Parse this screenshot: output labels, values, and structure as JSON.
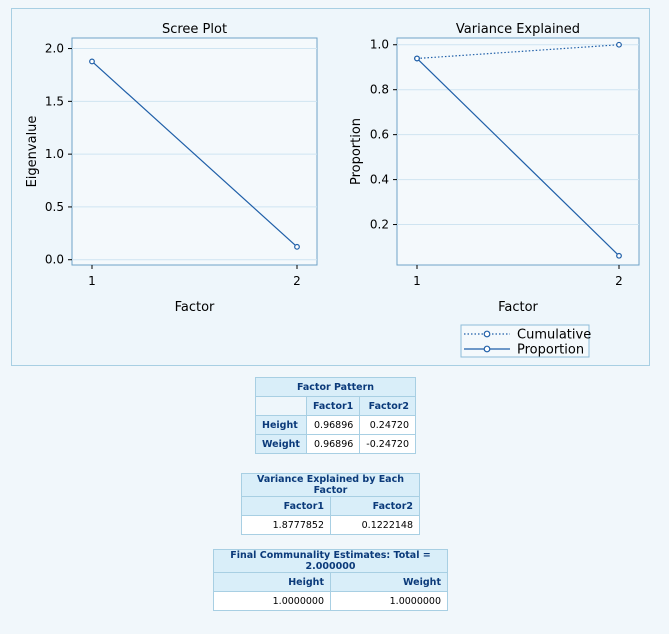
{
  "chart_data": [
    {
      "type": "line",
      "title": "Scree Plot",
      "xlabel": "Factor",
      "ylabel": "Eigenvalue",
      "x": [
        1,
        2
      ],
      "xticks": [
        "1",
        "2"
      ],
      "ylim": [
        -0.05,
        2.1
      ],
      "yticks": [
        "0.0",
        "0.5",
        "1.0",
        "1.5",
        "2.0"
      ],
      "ytick_values": [
        0.0,
        0.5,
        1.0,
        1.5,
        2.0
      ],
      "grid": true,
      "series": [
        {
          "values": [
            1.8777852,
            0.1222148
          ],
          "color": "#1f5fa8",
          "style": "solid",
          "marker": "circle"
        }
      ]
    },
    {
      "type": "line",
      "title": "Variance Explained",
      "xlabel": "Factor",
      "ylabel": "Proportion",
      "x": [
        1,
        2
      ],
      "xticks": [
        "1",
        "2"
      ],
      "ylim": [
        0.02,
        1.03
      ],
      "yticks": [
        "0.2",
        "0.4",
        "0.6",
        "0.8",
        "1.0"
      ],
      "ytick_values": [
        0.2,
        0.4,
        0.6,
        0.8,
        1.0
      ],
      "grid": true,
      "legend_position": "bottom-right",
      "series": [
        {
          "name": "Cumulative",
          "values": [
            0.9389,
            1.0
          ],
          "color": "#1f5fa8",
          "style": "dotted",
          "marker": "circle"
        },
        {
          "name": "Proportion",
          "values": [
            0.9389,
            0.0611
          ],
          "color": "#1f5fa8",
          "style": "solid",
          "marker": "circle"
        }
      ]
    }
  ],
  "tables": {
    "factor_pattern": {
      "caption": "Factor Pattern",
      "columns": [
        "Factor1",
        "Factor2"
      ],
      "rows": [
        {
          "label": "Height",
          "values": [
            "0.96896",
            "0.24720"
          ]
        },
        {
          "label": "Weight",
          "values": [
            "0.96896",
            "-0.24720"
          ]
        }
      ]
    },
    "variance_explained": {
      "caption": "Variance Explained by Each Factor",
      "columns": [
        "Factor1",
        "Factor2"
      ],
      "values": [
        "1.8777852",
        "0.1222148"
      ]
    },
    "communality": {
      "caption": "Final Communality Estimates: Total = 2.000000",
      "columns": [
        "Height",
        "Weight"
      ],
      "values": [
        "1.0000000",
        "1.0000000"
      ]
    }
  }
}
